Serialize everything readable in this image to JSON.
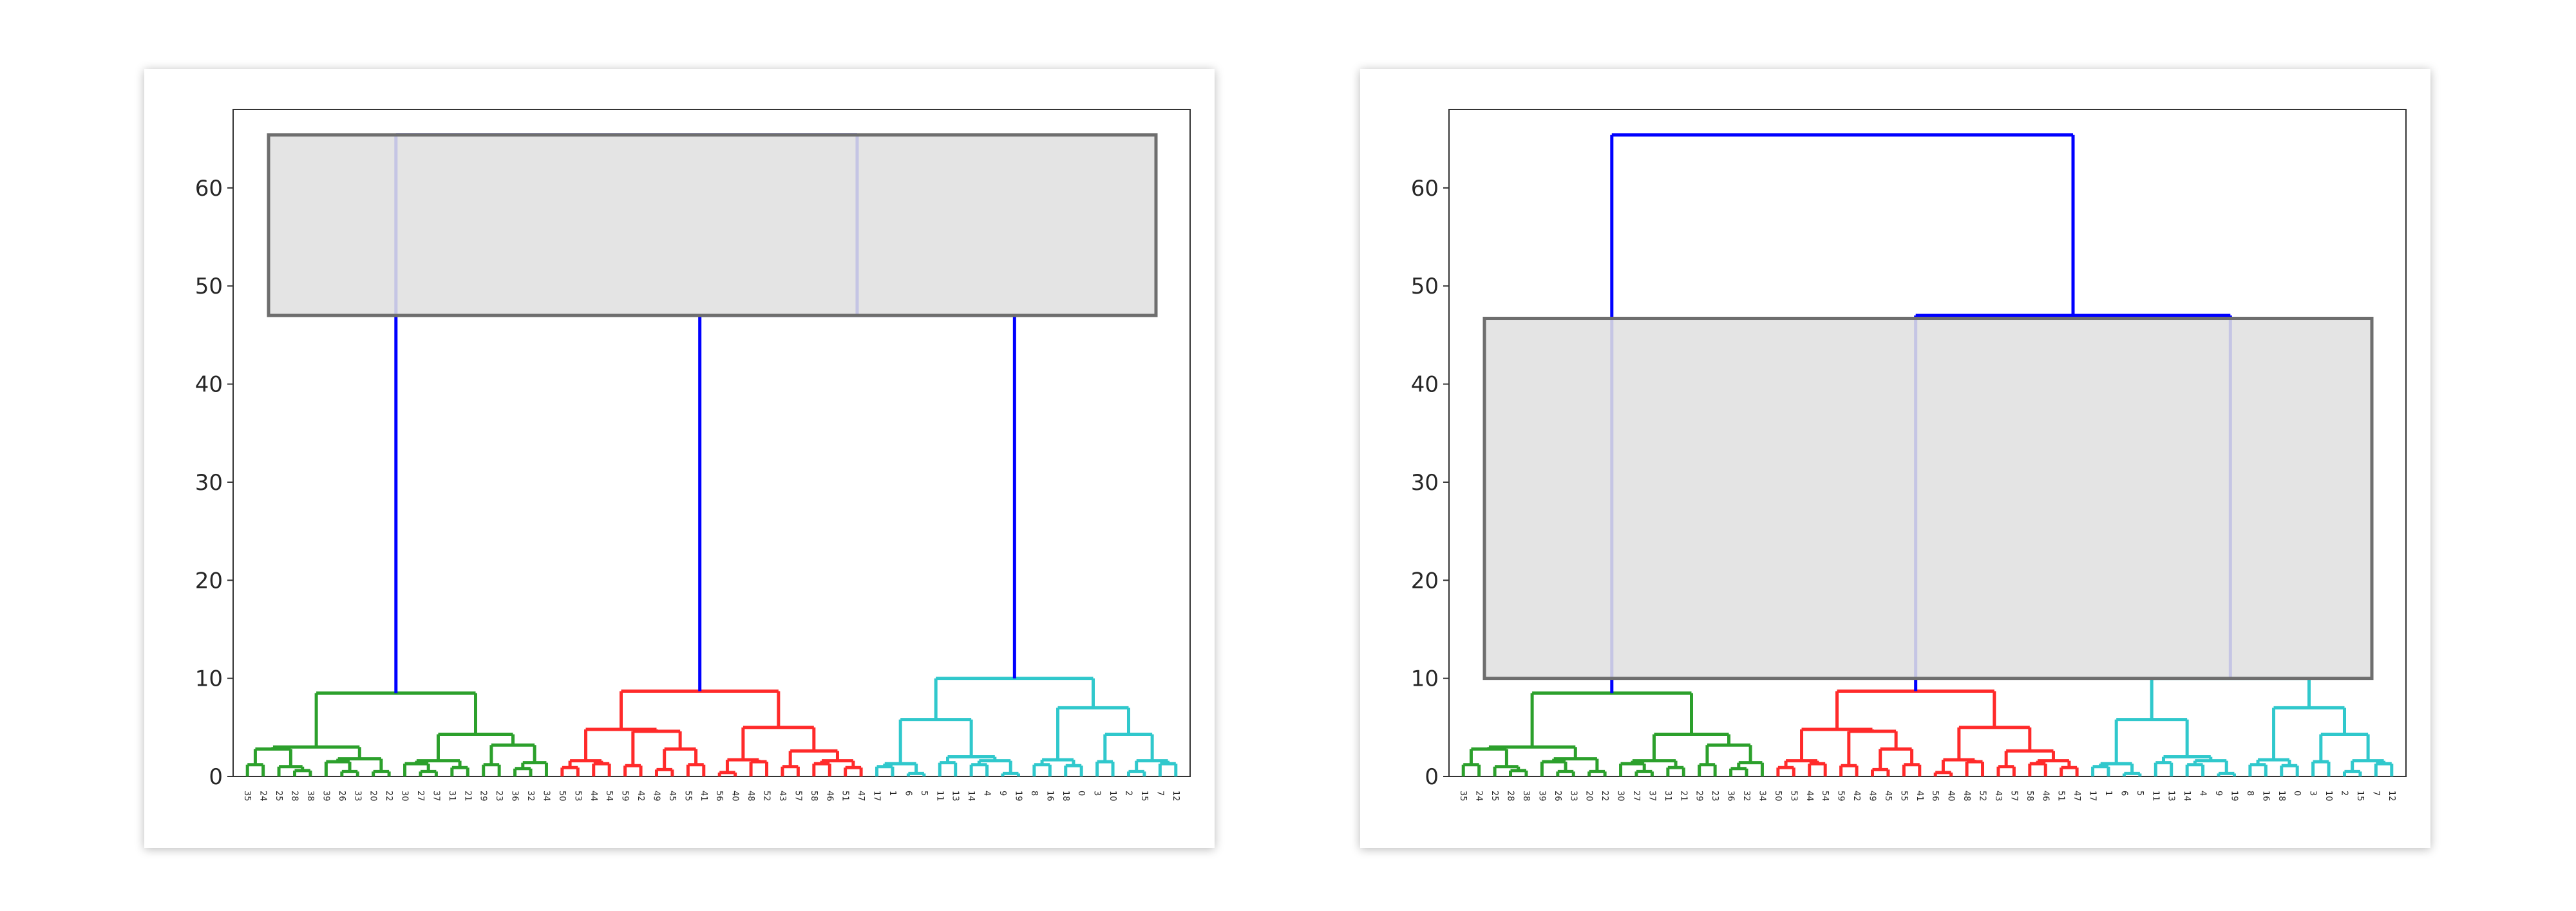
{
  "chart_data": [
    {
      "type": "dendrogram",
      "title": "",
      "xlabel": "",
      "ylabel": "",
      "ylim": [
        0,
        68
      ],
      "yticks": [
        0,
        10,
        20,
        30,
        40,
        50,
        60
      ],
      "leaves": [
        "35",
        "24",
        "25",
        "28",
        "38",
        "39",
        "26",
        "33",
        "20",
        "22",
        "30",
        "27",
        "37",
        "31",
        "21",
        "29",
        "23",
        "36",
        "32",
        "34",
        "50",
        "53",
        "44",
        "54",
        "59",
        "42",
        "49",
        "45",
        "55",
        "41",
        "56",
        "40",
        "48",
        "52",
        "43",
        "57",
        "58",
        "46",
        "51",
        "47",
        "17",
        "1",
        "6",
        "5",
        "11",
        "13",
        "14",
        "4",
        "9",
        "19",
        "8",
        "16",
        "18",
        "0",
        "3",
        "10",
        "2",
        "15",
        "7",
        "12"
      ],
      "link_colors": {
        "root": "#0000ff",
        "cluster_green": "#2ca02c",
        "cluster_red": "#ff2a2a",
        "cluster_cyan": "#30c8cc"
      },
      "merges": [
        {
          "cluster": "root",
          "height": 65.4,
          "joins": [
            "green",
            "red+cyan"
          ]
        },
        {
          "cluster": "red+cyan",
          "height": 47.0,
          "joins": [
            "red",
            "cyan"
          ]
        },
        {
          "cluster": "green",
          "height": 8.5
        },
        {
          "cluster": "red",
          "height": 8.7
        },
        {
          "cluster": "cyan",
          "height": 10.0
        }
      ],
      "highlight_band": {
        "from": 47.0,
        "to": 65.4,
        "color": "#e0e0e0"
      }
    },
    {
      "type": "dendrogram",
      "title": "",
      "xlabel": "",
      "ylabel": "",
      "ylim": [
        0,
        68
      ],
      "yticks": [
        0,
        10,
        20,
        30,
        40,
        50,
        60
      ],
      "leaves": [
        "35",
        "24",
        "25",
        "28",
        "38",
        "39",
        "26",
        "33",
        "20",
        "22",
        "30",
        "27",
        "37",
        "31",
        "21",
        "29",
        "23",
        "36",
        "32",
        "34",
        "50",
        "53",
        "44",
        "54",
        "59",
        "42",
        "49",
        "45",
        "55",
        "41",
        "56",
        "40",
        "48",
        "52",
        "43",
        "57",
        "58",
        "46",
        "51",
        "47",
        "17",
        "1",
        "6",
        "5",
        "11",
        "13",
        "14",
        "4",
        "9",
        "19",
        "8",
        "16",
        "18",
        "0",
        "3",
        "10",
        "2",
        "15",
        "7",
        "12"
      ],
      "link_colors": {
        "root": "#0000ff",
        "cluster_green": "#2ca02c",
        "cluster_red": "#ff2a2a",
        "cluster_cyan": "#30c8cc"
      },
      "merges": [
        {
          "cluster": "root",
          "height": 65.4,
          "joins": [
            "green",
            "red+cyan"
          ]
        },
        {
          "cluster": "red+cyan",
          "height": 47.0,
          "joins": [
            "red",
            "cyan"
          ]
        },
        {
          "cluster": "green",
          "height": 8.5
        },
        {
          "cluster": "red",
          "height": 8.7
        },
        {
          "cluster": "cyan",
          "height": 10.0
        }
      ],
      "highlight_band": {
        "from": 10.0,
        "to": 46.7,
        "color": "#e0e0e0"
      }
    }
  ]
}
